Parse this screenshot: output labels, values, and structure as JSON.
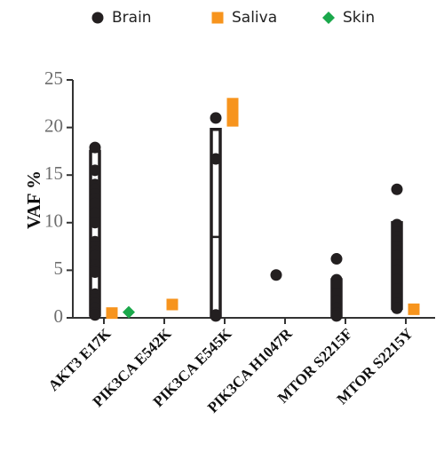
{
  "chart_data": {
    "type": "dot",
    "y_label": "VAF %",
    "categories": [
      "AKT3 E17K",
      "PIK3CA E542K",
      "PIK3CA E545K",
      "PIK3CA H1047R",
      "MTOR S2215F",
      "MTOR S2215Y"
    ],
    "series": [
      {
        "name": "Brain",
        "color": "#231f20",
        "marker": "circle",
        "values": [
          [
            17.9,
            15.5,
            14,
            13.5,
            13,
            12.5,
            12,
            11,
            10,
            8,
            7.5,
            7,
            6.5,
            5.5,
            5,
            4.8,
            2.5,
            2,
            1.5,
            1,
            0.5,
            0.3
          ],
          [],
          [
            21,
            16.7,
            0.3,
            0.2
          ],
          [
            4.5
          ],
          [
            6.2,
            4,
            3.5,
            2.5,
            1.8,
            1,
            0.5,
            0.2
          ],
          [
            13.5,
            9.8,
            9.5,
            9,
            8.5,
            8,
            7.5,
            7,
            6.5,
            5.5,
            5,
            4,
            3,
            2,
            1.5,
            1
          ]
        ]
      },
      {
        "name": "Saliva",
        "color": "#f7941d",
        "marker": "square",
        "values": [
          [
            0.5
          ],
          [
            1.4
          ],
          [
            22.5,
            21.8,
            21.3,
            20.7
          ],
          [],
          [],
          [
            0.9
          ]
        ]
      },
      {
        "name": "Skin",
        "color": "#1aa84b",
        "marker": "diamond",
        "values": [
          [
            0.6
          ],
          [],
          [],
          [],
          [],
          []
        ]
      }
    ],
    "boxes": {
      "low": [
        0.3,
        null,
        0.2,
        null,
        0.2,
        1
      ],
      "high": [
        17.5,
        null,
        19.8,
        null,
        4,
        10
      ],
      "median": [
        7,
        null,
        8.5,
        null,
        1.8,
        6
      ]
    },
    "ylim": [
      0,
      25
    ],
    "yticks": [
      0,
      5,
      10,
      15,
      20,
      25
    ]
  }
}
